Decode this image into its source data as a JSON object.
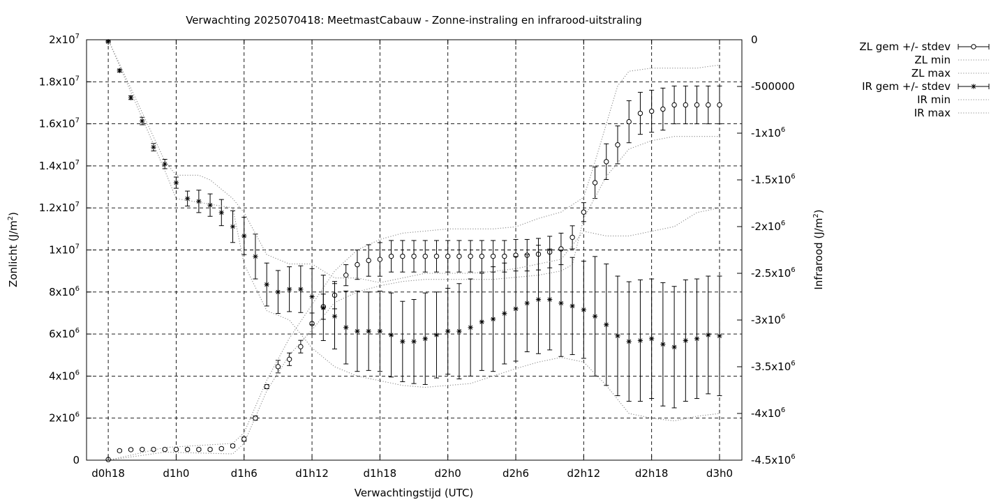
{
  "chart_data": {
    "type": "line",
    "title": "Verwachting 2025070418: MeetmastCabauw - Zonne-instraling en infrarood-uitstraling",
    "xlabel": "Verwachtingstijd (UTC)",
    "ylabel": "Zonlicht (J/m2)",
    "y2label": "Infrarood (J/m2)",
    "x_unit": "hours since d0h18",
    "xlim": [
      0,
      58
    ],
    "ylim": [
      0,
      20000000
    ],
    "y2lim": [
      -4500000,
      0
    ],
    "x_ticks": [
      {
        "x": 0,
        "label": "d0h18"
      },
      {
        "x": 6,
        "label": "d1h0"
      },
      {
        "x": 12,
        "label": "d1h6"
      },
      {
        "x": 18,
        "label": "d1h12"
      },
      {
        "x": 24,
        "label": "d1h18"
      },
      {
        "x": 30,
        "label": "d2h0"
      },
      {
        "x": 36,
        "label": "d2h6"
      },
      {
        "x": 42,
        "label": "d2h12"
      },
      {
        "x": 48,
        "label": "d2h18"
      },
      {
        "x": 54,
        "label": "d3h0"
      }
    ],
    "y_ticks": [
      {
        "v": 0,
        "base": "0",
        "exp": ""
      },
      {
        "v": 2000000,
        "base": "2x10",
        "exp": "6"
      },
      {
        "v": 4000000,
        "base": "4x10",
        "exp": "6"
      },
      {
        "v": 6000000,
        "base": "6x10",
        "exp": "6"
      },
      {
        "v": 8000000,
        "base": "8x10",
        "exp": "6"
      },
      {
        "v": 10000000,
        "base": "1x10",
        "exp": "7"
      },
      {
        "v": 12000000,
        "base": "1.2x10",
        "exp": "7"
      },
      {
        "v": 14000000,
        "base": "1.4x10",
        "exp": "7"
      },
      {
        "v": 16000000,
        "base": "1.6x10",
        "exp": "7"
      },
      {
        "v": 18000000,
        "base": "1.8x10",
        "exp": "7"
      },
      {
        "v": 20000000,
        "base": "2x10",
        "exp": "7"
      }
    ],
    "y2_ticks": [
      {
        "v": 0,
        "base": "0",
        "exp": ""
      },
      {
        "v": -500000,
        "base": "-500000",
        "exp": ""
      },
      {
        "v": -1000000,
        "base": "-1x10",
        "exp": "6"
      },
      {
        "v": -1500000,
        "base": "-1.5x10",
        "exp": "6"
      },
      {
        "v": -2000000,
        "base": "-2x10",
        "exp": "6"
      },
      {
        "v": -2500000,
        "base": "-2.5x10",
        "exp": "6"
      },
      {
        "v": -3000000,
        "base": "-3x10",
        "exp": "6"
      },
      {
        "v": -3500000,
        "base": "-3.5x10",
        "exp": "6"
      },
      {
        "v": -4000000,
        "base": "-4x10",
        "exp": "6"
      },
      {
        "v": -4500000,
        "base": "-4.5x10",
        "exp": "6"
      }
    ],
    "legend_position": "outside-top-right",
    "grid": true,
    "series": [
      {
        "name": "ZL gem +/- stdev",
        "axis": "y",
        "kind": "errorbars",
        "marker": "circle",
        "x": [
          0,
          1,
          2,
          3,
          4,
          5,
          6,
          7,
          8,
          9,
          10,
          11,
          12,
          13,
          14,
          15,
          16,
          17,
          18,
          19,
          20,
          21,
          22,
          23,
          24,
          25,
          26,
          27,
          28,
          29,
          30,
          31,
          32,
          33,
          34,
          35,
          36,
          37,
          38,
          39,
          40,
          41,
          42,
          43,
          44,
          45,
          46,
          47,
          48,
          49,
          50,
          51,
          52,
          53,
          54
        ],
        "y": [
          30000,
          450000,
          500000,
          510000,
          510000,
          510000,
          510000,
          510000,
          510000,
          510000,
          550000,
          680000,
          1000000,
          2000000,
          3500000,
          4450000,
          4800000,
          5400000,
          6500000,
          7300000,
          7850000,
          8800000,
          9300000,
          9500000,
          9550000,
          9700000,
          9700000,
          9700000,
          9700000,
          9700000,
          9700000,
          9700000,
          9700000,
          9700000,
          9700000,
          9700000,
          9750000,
          9750000,
          9800000,
          9900000,
          10050000,
          10600000,
          11800000,
          13200000,
          14200000,
          15000000,
          16100000,
          16500000,
          16600000,
          16700000,
          16900000,
          16900000,
          16900000,
          16900000,
          16900000
        ],
        "err": [
          20000,
          50000,
          50000,
          50000,
          50000,
          50000,
          50000,
          50000,
          50000,
          50000,
          50000,
          60000,
          100000,
          100000,
          100000,
          300000,
          300000,
          300000,
          500000,
          600000,
          650000,
          500000,
          700000,
          750000,
          800000,
          750000,
          750000,
          750000,
          750000,
          750000,
          750000,
          750000,
          750000,
          750000,
          750000,
          750000,
          750000,
          750000,
          750000,
          750000,
          750000,
          550000,
          450000,
          750000,
          850000,
          900000,
          1000000,
          1000000,
          1000000,
          1000000,
          900000,
          900000,
          900000,
          900000,
          900000
        ]
      },
      {
        "name": "ZL min",
        "axis": "y",
        "kind": "line",
        "style": "dotted",
        "x": [
          0,
          5,
          11,
          12,
          14,
          16,
          18,
          20,
          22,
          24,
          26,
          28,
          30,
          32,
          34,
          36,
          38,
          40,
          41,
          42,
          44,
          46,
          48,
          50,
          52,
          54
        ],
        "y": [
          0,
          380000,
          300000,
          800000,
          3300000,
          5000000,
          6200000,
          7500000,
          8000000,
          8300000,
          8500000,
          8600000,
          8600000,
          8600000,
          8600000,
          8700000,
          8800000,
          9000000,
          9300000,
          11500000,
          13500000,
          14800000,
          15200000,
          15400000,
          15400000,
          15400000
        ]
      },
      {
        "name": "ZL max",
        "axis": "y",
        "kind": "line",
        "style": "dotted",
        "x": [
          0,
          5,
          11,
          12,
          14,
          16,
          18,
          20,
          22,
          24,
          26,
          28,
          30,
          32,
          34,
          36,
          38,
          40,
          42,
          43,
          44,
          45,
          46,
          48,
          50,
          52,
          54
        ],
        "y": [
          0,
          600000,
          800000,
          1300000,
          3800000,
          5800000,
          7400000,
          9000000,
          10000000,
          10500000,
          10800000,
          10900000,
          11000000,
          11000000,
          11000000,
          11100000,
          11500000,
          11800000,
          12500000,
          14200000,
          16000000,
          17800000,
          18500000,
          18650000,
          18650000,
          18650000,
          18800000
        ]
      },
      {
        "name": "IR gem +/- stdev",
        "axis": "y2",
        "kind": "errorbars",
        "marker": "star",
        "x": [
          0,
          1,
          2,
          3,
          4,
          5,
          6,
          7,
          8,
          9,
          10,
          11,
          12,
          13,
          14,
          15,
          16,
          17,
          18,
          19,
          20,
          21,
          22,
          23,
          24,
          25,
          26,
          27,
          28,
          29,
          30,
          31,
          32,
          33,
          34,
          35,
          36,
          37,
          38,
          39,
          40,
          41,
          42,
          43,
          44,
          45,
          46,
          47,
          48,
          49,
          50,
          51,
          52,
          53,
          54
        ],
        "y": [
          -20000,
          -330000,
          -620000,
          -870000,
          -1150000,
          -1330000,
          -1530000,
          -1700000,
          -1730000,
          -1770000,
          -1850000,
          -2000000,
          -2100000,
          -2320000,
          -2620000,
          -2700000,
          -2670000,
          -2670000,
          -2750000,
          -2870000,
          -2960000,
          -3080000,
          -3120000,
          -3120000,
          -3120000,
          -3160000,
          -3230000,
          -3230000,
          -3200000,
          -3160000,
          -3120000,
          -3120000,
          -3080000,
          -3020000,
          -2990000,
          -2930000,
          -2880000,
          -2820000,
          -2780000,
          -2780000,
          -2820000,
          -2850000,
          -2890000,
          -2960000,
          -3050000,
          -3170000,
          -3230000,
          -3220000,
          -3200000,
          -3260000,
          -3290000,
          -3220000,
          -3200000,
          -3160000,
          -3170000
        ],
        "err": [
          10000,
          15000,
          20000,
          40000,
          40000,
          50000,
          60000,
          80000,
          120000,
          120000,
          140000,
          170000,
          200000,
          240000,
          230000,
          230000,
          240000,
          250000,
          300000,
          350000,
          350000,
          390000,
          430000,
          420000,
          430000,
          450000,
          430000,
          450000,
          490000,
          460000,
          460000,
          510000,
          520000,
          520000,
          560000,
          540000,
          560000,
          520000,
          580000,
          540000,
          570000,
          520000,
          520000,
          640000,
          650000,
          640000,
          640000,
          650000,
          640000,
          660000,
          650000,
          650000,
          640000,
          630000,
          640000
        ]
      },
      {
        "name": "IR min",
        "axis": "y2",
        "kind": "line",
        "style": "dotted",
        "x": [
          0,
          5,
          6,
          11,
          12,
          14,
          16,
          18,
          20,
          22,
          24,
          26,
          28,
          30,
          32,
          34,
          36,
          38,
          40,
          42,
          44,
          46,
          48,
          50,
          52,
          54
        ],
        "y": [
          0,
          -1400000,
          -1700000,
          -1800000,
          -2400000,
          -2900000,
          -3000000,
          -3300000,
          -3500000,
          -3600000,
          -3650000,
          -3700000,
          -3720000,
          -3700000,
          -3680000,
          -3600000,
          -3520000,
          -3450000,
          -3400000,
          -3450000,
          -3700000,
          -4000000,
          -4050000,
          -4080000,
          -4030000,
          -4000000
        ]
      },
      {
        "name": "IR max",
        "axis": "y2",
        "kind": "line",
        "style": "dotted",
        "x": [
          0,
          5,
          6,
          8,
          9,
          11,
          12,
          14,
          16,
          18,
          20,
          22,
          24,
          26,
          28,
          30,
          32,
          34,
          36,
          38,
          40,
          42,
          44,
          46,
          48,
          50,
          52,
          54
        ],
        "y": [
          0,
          -1300000,
          -1450000,
          -1450000,
          -1500000,
          -1700000,
          -1850000,
          -2300000,
          -2400000,
          -2400000,
          -2550000,
          -2550000,
          -2600000,
          -2550000,
          -2500000,
          -2500000,
          -2500000,
          -2480000,
          -2450000,
          -2400000,
          -2350000,
          -2050000,
          -2100000,
          -2100000,
          -2050000,
          -2000000,
          -1850000,
          -1800000
        ]
      }
    ]
  }
}
